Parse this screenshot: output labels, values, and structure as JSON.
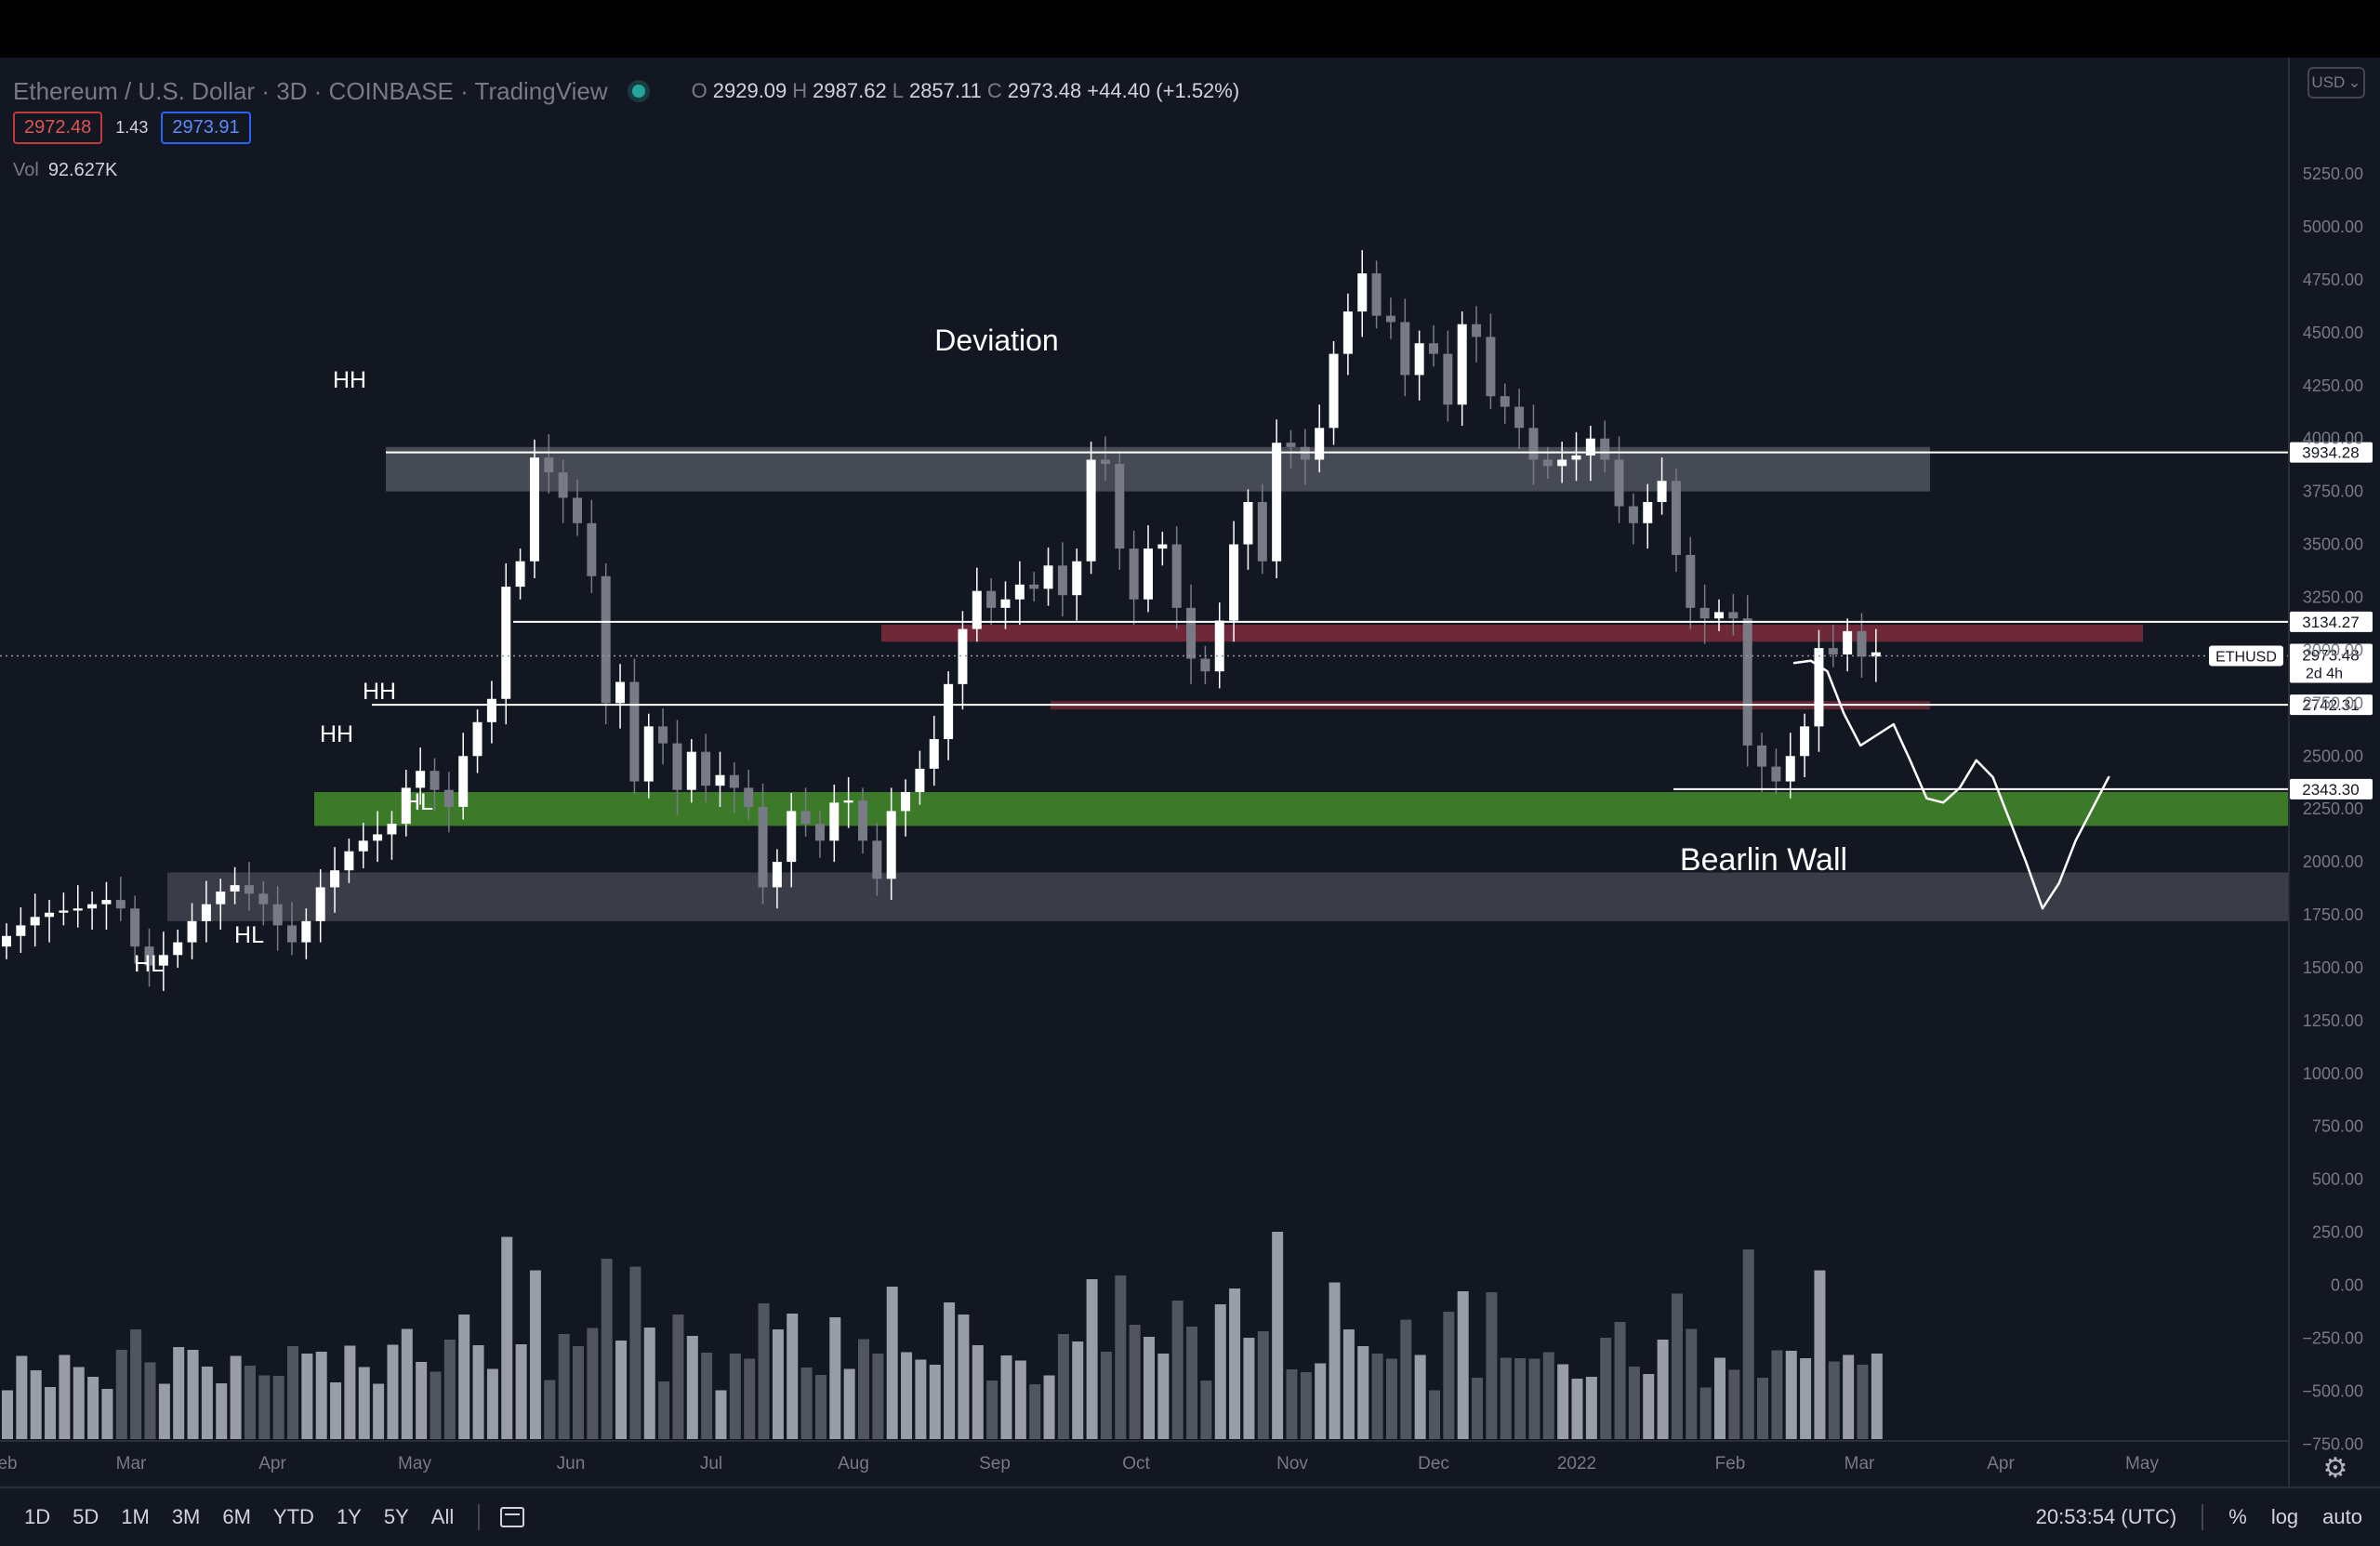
{
  "header": {
    "symbol_title": "Ethereum / U.S. Dollar · 3D · COINBASE · TradingView",
    "o_label": "O",
    "o_value": "2929.09",
    "h_label": "H",
    "h_value": "2987.62",
    "l_label": "L",
    "l_value": "2857.11",
    "c_label": "C",
    "c_value": "2973.48",
    "change": "+44.40 (+1.52%)",
    "sell_price": "2972.48",
    "spread": "1.43",
    "buy_price": "2973.91",
    "vol_label": "Vol",
    "vol_value": "92.627K",
    "currency": "USD"
  },
  "colors": {
    "background": "#131722",
    "bull": "#ffffff",
    "bear": "#787b86",
    "green_zone": "#3c7a2a",
    "red_zone": "#7a2a3a",
    "grey_zone": "#50535e"
  },
  "chart_data": {
    "type": "candlestick",
    "title": "Ethereum / U.S. Dollar · 3D · COINBASE · TradingView",
    "x_labels": [
      "eb",
      "Mar",
      "Apr",
      "May",
      "Jun",
      "Jul",
      "Aug",
      "Sep",
      "Oct",
      "Nov",
      "Dec",
      "2022",
      "Feb",
      "Mar",
      "Apr",
      "May"
    ],
    "y_ticks": [
      "5250.00",
      "5000.00",
      "4750.00",
      "4500.00",
      "4250.00",
      "4000.00",
      "3750.00",
      "3500.00",
      "3250.00",
      "3000.00",
      "2750.00",
      "2500.00",
      "2250.00",
      "2000.00",
      "1750.00",
      "1500.00",
      "1250.00",
      "1000.00",
      "750.00",
      "500.00",
      "250.00",
      "0.00",
      "−250.00",
      "−500.00",
      "−750.00"
    ],
    "ylim": [
      -830,
      5500
    ],
    "closes": [
      1650,
      1700,
      1740,
      1760,
      1770,
      1780,
      1800,
      1820,
      1780,
      1600,
      1510,
      1560,
      1620,
      1720,
      1800,
      1860,
      1890,
      1850,
      1800,
      1700,
      1620,
      1720,
      1880,
      1960,
      2050,
      2100,
      2130,
      2180,
      2350,
      2430,
      2340,
      2260,
      2500,
      2660,
      2770,
      3300,
      3420,
      3910,
      3840,
      3720,
      3600,
      3350,
      2750,
      2850,
      2380,
      2640,
      2560,
      2340,
      2520,
      2360,
      2410,
      2350,
      2260,
      1880,
      2000,
      2240,
      2180,
      2100,
      2280,
      2290,
      2100,
      1920,
      2240,
      2330,
      2440,
      2580,
      2840,
      3100,
      3280,
      3200,
      3240,
      3310,
      3290,
      3400,
      3260,
      3420,
      3900,
      3880,
      3480,
      3240,
      3480,
      3500,
      3200,
      2960,
      2900,
      3140,
      3500,
      3700,
      3420,
      3980,
      3960,
      3900,
      4050,
      4400,
      4600,
      4780,
      4580,
      4550,
      4300,
      4450,
      4400,
      4160,
      4540,
      4480,
      4200,
      4150,
      4050,
      3900,
      3870,
      3900,
      3920,
      4000,
      3900,
      3680,
      3600,
      3700,
      3800,
      3450,
      3200,
      3150,
      3180,
      3150,
      2550,
      2450,
      2380,
      2500,
      2640,
      3010,
      2980,
      3090,
      2970,
      2990
    ],
    "reference_levels": [
      3934.28,
      3134.27,
      2742.31,
      2343.3
    ],
    "current_price": 2973.48,
    "current_symbol": "ETHUSD",
    "countdown": "2d 4h",
    "zones": [
      {
        "name": "resistance-zone-grey",
        "from": 3750,
        "to": 3960
      },
      {
        "name": "red-zone-upper",
        "from": 3040,
        "to": 3120
      },
      {
        "name": "red-zone-lower",
        "from": 2720,
        "to": 2760
      },
      {
        "name": "green-zone",
        "from": 2170,
        "to": 2330
      },
      {
        "name": "bearlin-wall-zone",
        "from": 1720,
        "to": 1950
      }
    ],
    "annotations": [
      "Deviation",
      "HH",
      "HH",
      "HH",
      "HL",
      "HL",
      "HL",
      "Bearlin Wall"
    ],
    "projection": [
      2940,
      2950,
      2900,
      2700,
      2550,
      2600,
      2650,
      2480,
      2300,
      2280,
      2350,
      2480,
      2400,
      2200,
      2000,
      1780,
      1900,
      2100,
      2250,
      2400
    ]
  },
  "bottom": {
    "ranges": [
      "1D",
      "5D",
      "1M",
      "3M",
      "6M",
      "YTD",
      "1Y",
      "5Y",
      "All"
    ],
    "clock": "20:53:54 (UTC)",
    "percent": "%",
    "log": "log",
    "auto": "auto"
  }
}
